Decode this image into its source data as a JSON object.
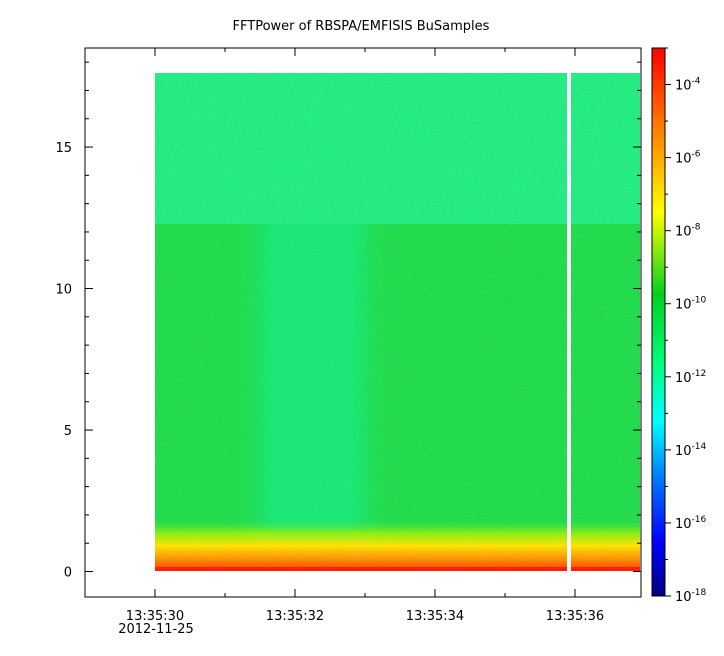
{
  "chart_data": {
    "type": "heatmap",
    "title": "FFTPower of RBSPA/EMFISIS  BuSamples",
    "xlabel": "",
    "ylabel": "",
    "x_ticks": [
      "13:35:30",
      "13:35:32",
      "13:35:34",
      "13:35:36"
    ],
    "x_date": "2012-11-25",
    "x_range": [
      "13:35:29.0",
      "13:35:37.2"
    ],
    "data_x_range": [
      "13:35:30.0",
      "13:35:37.2"
    ],
    "data_gap_at": "13:35:36.1",
    "y_ticks": [
      0,
      5,
      10,
      15
    ],
    "ylim": [
      -0.9,
      18.5
    ],
    "data_y_range": [
      0,
      17.5
    ],
    "band_boundary_y": 12.3,
    "colorbar": {
      "scale": "log",
      "range": [
        "1e-18",
        "1e-3"
      ],
      "ticks": [
        {
          "base": "10",
          "exp": "-4"
        },
        {
          "base": "10",
          "exp": "-6"
        },
        {
          "base": "10",
          "exp": "-8"
        },
        {
          "base": "10",
          "exp": "-10"
        },
        {
          "base": "10",
          "exp": "-12"
        },
        {
          "base": "10",
          "exp": "-14"
        },
        {
          "base": "10",
          "exp": "-16"
        },
        {
          "base": "10",
          "exp": "-18"
        }
      ],
      "colormap": [
        "#00007f",
        "#0000ff",
        "#0080ff",
        "#00ffff",
        "#00ff80",
        "#00d020",
        "#ffff00",
        "#ff8000",
        "#ff0000"
      ]
    }
  }
}
